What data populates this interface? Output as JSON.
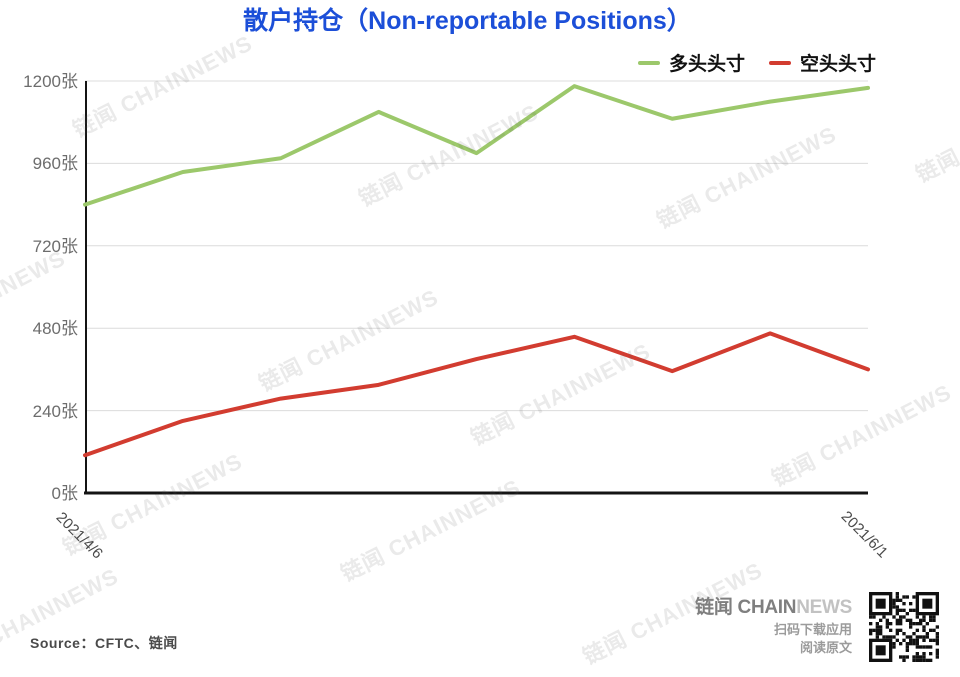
{
  "title": "散户持仓（Non-reportable Positions）",
  "title_color": "#1c4fd8",
  "watermark_text": "链闻 CHAINNEWS",
  "legend": [
    {
      "label": "多头头寸",
      "color": "#9cc86b"
    },
    {
      "label": "空头头寸",
      "color": "#d23c30"
    }
  ],
  "chart_data": {
    "type": "line",
    "title": "散户持仓（Non-reportable Positions）",
    "n_points": 9,
    "x_first_tick": "2021/4/6",
    "x_last_tick": "2021/6/1",
    "series": [
      {
        "name": "多头头寸",
        "color": "#9cc86b",
        "values": [
          840,
          935,
          975,
          1110,
          990,
          1185,
          1090,
          1140,
          1180
        ]
      },
      {
        "name": "空头头寸",
        "color": "#d23c30",
        "values": [
          110,
          210,
          275,
          315,
          390,
          455,
          355,
          465,
          360
        ]
      }
    ],
    "y_tick_labels": [
      "1200张",
      "960张",
      "720张",
      "480张",
      "240张",
      "0张"
    ],
    "y_unit": "张",
    "ylim": [
      0,
      1200
    ],
    "grid": true,
    "legend_position": "top-right"
  },
  "footer": {
    "source": "Source：CFTC、链闻",
    "brand_bold": "链闻 CHAIN",
    "brand_light": "NEWS",
    "brand_sub1": "扫码下载应用",
    "brand_sub2": "阅读原文"
  }
}
